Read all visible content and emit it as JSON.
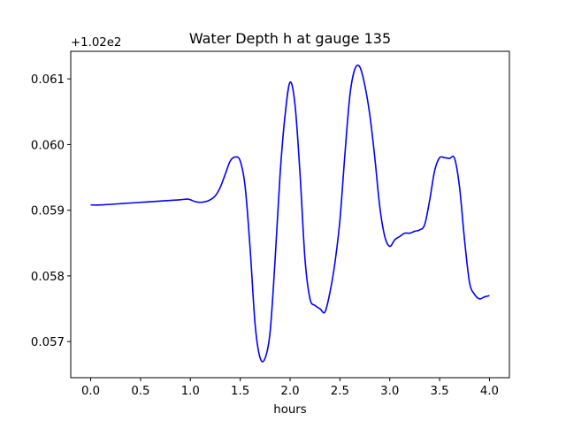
{
  "chart_data": {
    "type": "line",
    "title": "Water Depth h at gauge 135",
    "xlabel": "hours",
    "ylabel": "",
    "offset_text": "+1.02e2",
    "y_offset": 102,
    "xlim": [
      -0.2,
      4.2
    ],
    "ylim": [
      0.05645,
      0.06142
    ],
    "xticks": [
      0.0,
      0.5,
      1.0,
      1.5,
      2.0,
      2.5,
      3.0,
      3.5,
      4.0
    ],
    "xtick_labels": [
      "0.0",
      "0.5",
      "1.0",
      "1.5",
      "2.0",
      "2.5",
      "3.0",
      "3.5",
      "4.0"
    ],
    "yticks": [
      0.057,
      0.058,
      0.059,
      0.06,
      0.061
    ],
    "ytick_labels": [
      "0.057",
      "0.058",
      "0.059",
      "0.060",
      "0.061"
    ],
    "grid": false,
    "legend": "none",
    "colors": {
      "line": "#0000ff",
      "axes": "#000000",
      "background": "#ffffff"
    },
    "series": [
      {
        "x": [
          0.0,
          0.1,
          0.2,
          0.3,
          0.4,
          0.5,
          0.6,
          0.7,
          0.8,
          0.9,
          0.97,
          1.0,
          1.05,
          1.1,
          1.15,
          1.2,
          1.25,
          1.3,
          1.35,
          1.4,
          1.45,
          1.5,
          1.55,
          1.6,
          1.65,
          1.7,
          1.75,
          1.8,
          1.85,
          1.9,
          1.95,
          2.0,
          2.05,
          2.1,
          2.15,
          2.2,
          2.25,
          2.3,
          2.35,
          2.4,
          2.45,
          2.5,
          2.55,
          2.6,
          2.65,
          2.7,
          2.75,
          2.8,
          2.85,
          2.9,
          2.95,
          3.0,
          3.05,
          3.1,
          3.15,
          3.2,
          3.25,
          3.3,
          3.35,
          3.4,
          3.45,
          3.5,
          3.55,
          3.6,
          3.65,
          3.7,
          3.75,
          3.8,
          3.85,
          3.9,
          3.95,
          4.0
        ],
        "y": [
          0.05908,
          0.05908,
          0.05909,
          0.0591,
          0.05911,
          0.05912,
          0.05913,
          0.05914,
          0.05915,
          0.05916,
          0.05917,
          0.05916,
          0.05913,
          0.05912,
          0.05913,
          0.05916,
          0.05922,
          0.05935,
          0.05955,
          0.05975,
          0.05981,
          0.05975,
          0.05935,
          0.0584,
          0.05725,
          0.05675,
          0.05675,
          0.05715,
          0.05825,
          0.05955,
          0.06045,
          0.06095,
          0.0606,
          0.05955,
          0.05825,
          0.05765,
          0.05755,
          0.0575,
          0.05745,
          0.05775,
          0.0582,
          0.05885,
          0.05985,
          0.06075,
          0.06115,
          0.06118,
          0.0609,
          0.06045,
          0.0598,
          0.05905,
          0.0586,
          0.05845,
          0.05855,
          0.0586,
          0.05865,
          0.05865,
          0.05868,
          0.0587,
          0.05878,
          0.05915,
          0.0596,
          0.0598,
          0.0598,
          0.05979,
          0.05979,
          0.05935,
          0.05855,
          0.0579,
          0.05772,
          0.05765,
          0.05768,
          0.0577
        ]
      }
    ]
  }
}
